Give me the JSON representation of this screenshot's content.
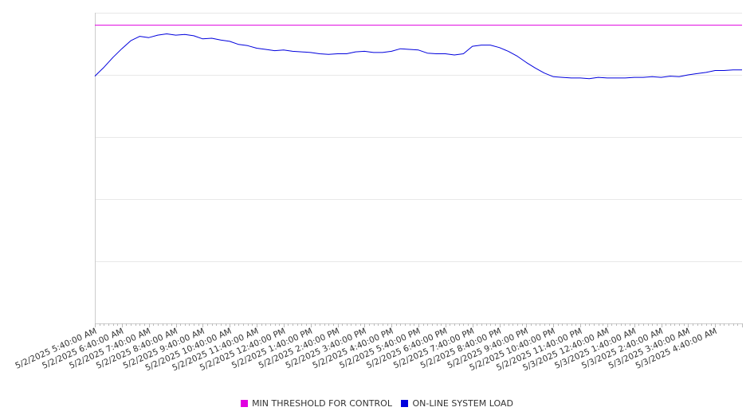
{
  "chart_data": {
    "type": "line",
    "title": "",
    "xlabel": "",
    "ylabel": "",
    "grid": true,
    "legend_position": "bottom",
    "y_tick_labels_visible": false,
    "ylim": [
      0,
      5
    ],
    "x_tick_labels": [
      "5/2/2025 5:40:00 AM",
      "5/2/2025 6:40:00 AM",
      "5/2/2025 7:40:00 AM",
      "5/2/2025 8:40:00 AM",
      "5/2/2025 9:40:00 AM",
      "5/2/2025 10:40:00 AM",
      "5/2/2025 11:40:00 AM",
      "5/2/2025 12:40:00 PM",
      "5/2/2025 1:40:00 PM",
      "5/2/2025 2:40:00 PM",
      "5/2/2025 3:40:00 PM",
      "5/2/2025 4:40:00 PM",
      "5/2/2025 5:40:00 PM",
      "5/2/2025 6:40:00 PM",
      "5/2/2025 7:40:00 PM",
      "5/2/2025 8:40:00 PM",
      "5/2/2025 9:40:00 PM",
      "5/2/2025 10:40:00 PM",
      "5/2/2025 11:40:00 PM",
      "5/3/2025 12:40:00 AM",
      "5/3/2025 1:40:00 AM",
      "5/3/2025 2:40:00 AM",
      "5/3/2025 3:40:00 AM",
      "5/3/2025 4:40:00 AM"
    ],
    "series": [
      {
        "name": "MIN THRESHOLD FOR CONTROL",
        "color": "#e000e0",
        "x": [
          "5/2/2025 5:40:00 AM",
          "5/3/2025 5:40:00 AM"
        ],
        "y": [
          4.8,
          4.8
        ]
      },
      {
        "name": "ON-LINE SYSTEM LOAD",
        "color": "#0000dd",
        "x": [
          "5/2/2025 5:40:00 AM",
          "5/2/2025 6:00:00 AM",
          "5/2/2025 6:20:00 AM",
          "5/2/2025 6:40:00 AM",
          "5/2/2025 7:00:00 AM",
          "5/2/2025 7:20:00 AM",
          "5/2/2025 7:40:00 AM",
          "5/2/2025 8:00:00 AM",
          "5/2/2025 8:20:00 AM",
          "5/2/2025 8:40:00 AM",
          "5/2/2025 9:00:00 AM",
          "5/2/2025 9:20:00 AM",
          "5/2/2025 9:40:00 AM",
          "5/2/2025 10:00:00 AM",
          "5/2/2025 10:20:00 AM",
          "5/2/2025 10:40:00 AM",
          "5/2/2025 11:00:00 AM",
          "5/2/2025 11:20:00 AM",
          "5/2/2025 11:40:00 AM",
          "5/2/2025 12:00:00 PM",
          "5/2/2025 12:20:00 PM",
          "5/2/2025 12:40:00 PM",
          "5/2/2025 1:00:00 PM",
          "5/2/2025 1:20:00 PM",
          "5/2/2025 1:40:00 PM",
          "5/2/2025 2:00:00 PM",
          "5/2/2025 2:20:00 PM",
          "5/2/2025 2:40:00 PM",
          "5/2/2025 3:00:00 PM",
          "5/2/2025 3:20:00 PM",
          "5/2/2025 3:40:00 PM",
          "5/2/2025 4:00:00 PM",
          "5/2/2025 4:20:00 PM",
          "5/2/2025 4:40:00 PM",
          "5/2/2025 5:00:00 PM",
          "5/2/2025 5:20:00 PM",
          "5/2/2025 5:40:00 PM",
          "5/2/2025 6:00:00 PM",
          "5/2/2025 6:20:00 PM",
          "5/2/2025 6:40:00 PM",
          "5/2/2025 7:00:00 PM",
          "5/2/2025 7:20:00 PM",
          "5/2/2025 7:40:00 PM",
          "5/2/2025 8:00:00 PM",
          "5/2/2025 8:20:00 PM",
          "5/2/2025 8:40:00 PM",
          "5/2/2025 9:00:00 PM",
          "5/2/2025 9:20:00 PM",
          "5/2/2025 9:40:00 PM",
          "5/2/2025 10:00:00 PM",
          "5/2/2025 10:20:00 PM",
          "5/2/2025 10:40:00 PM",
          "5/2/2025 11:00:00 PM",
          "5/2/2025 11:20:00 PM",
          "5/2/2025 11:40:00 PM",
          "5/3/2025 12:00:00 AM",
          "5/3/2025 12:20:00 AM",
          "5/3/2025 12:40:00 AM",
          "5/3/2025 1:00:00 AM",
          "5/3/2025 1:20:00 AM",
          "5/3/2025 1:40:00 AM",
          "5/3/2025 2:00:00 AM",
          "5/3/2025 2:20:00 AM",
          "5/3/2025 2:40:00 AM",
          "5/3/2025 3:00:00 AM",
          "5/3/2025 3:20:00 AM",
          "5/3/2025 3:40:00 AM",
          "5/3/2025 4:00:00 AM",
          "5/3/2025 4:20:00 AM",
          "5/3/2025 4:40:00 AM",
          "5/3/2025 5:00:00 AM",
          "5/3/2025 5:20:00 AM",
          "5/3/2025 5:40:00 AM"
        ],
        "y": [
          3.98,
          4.12,
          4.28,
          4.42,
          4.55,
          4.62,
          4.6,
          4.64,
          4.66,
          4.64,
          4.65,
          4.63,
          4.58,
          4.59,
          4.56,
          4.54,
          4.49,
          4.47,
          4.43,
          4.41,
          4.39,
          4.4,
          4.38,
          4.37,
          4.36,
          4.34,
          4.33,
          4.34,
          4.34,
          4.37,
          4.38,
          4.36,
          4.36,
          4.38,
          4.42,
          4.41,
          4.4,
          4.35,
          4.34,
          4.34,
          4.32,
          4.34,
          4.46,
          4.48,
          4.48,
          4.44,
          4.38,
          4.3,
          4.2,
          4.11,
          4.03,
          3.97,
          3.96,
          3.95,
          3.95,
          3.94,
          3.96,
          3.95,
          3.95,
          3.95,
          3.96,
          3.96,
          3.97,
          3.96,
          3.98,
          3.97,
          4.0,
          4.02,
          4.04,
          4.07,
          4.07,
          4.08,
          4.08
        ]
      }
    ]
  },
  "legend": {
    "items": [
      {
        "label": "MIN THRESHOLD FOR CONTROL",
        "color": "#e000e0"
      },
      {
        "label": "ON-LINE SYSTEM LOAD",
        "color": "#0000dd"
      }
    ]
  }
}
